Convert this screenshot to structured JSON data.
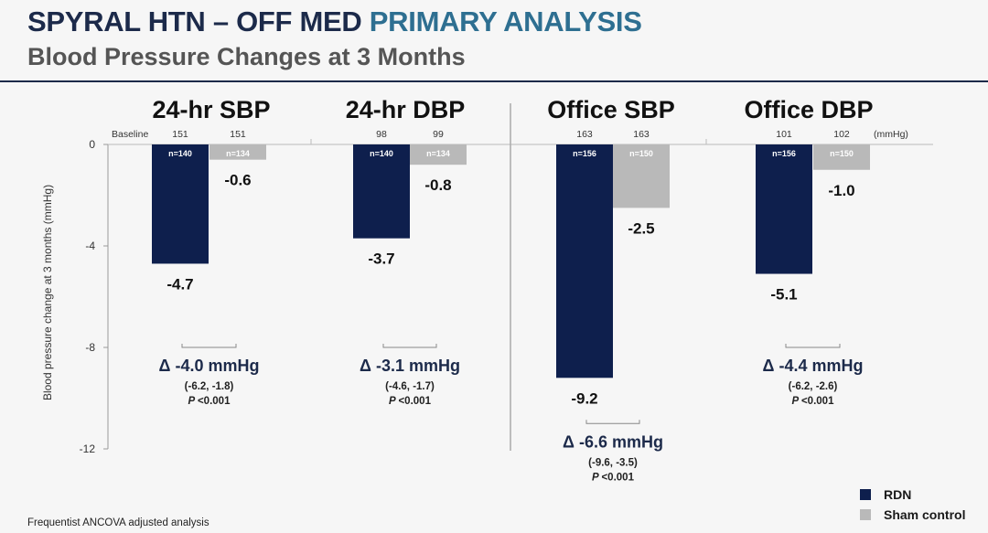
{
  "header": {
    "title_main": "SPYRAL HTN – OFF MED",
    "title_accent": "PRIMARY ANALYSIS",
    "subtitle": "Blood Pressure Changes at 3 Months"
  },
  "colors": {
    "rdn": "#0e1f4d",
    "sham": "#b9b9b9",
    "title": "#1c2a4a",
    "accent": "#2e6f91"
  },
  "chart_data": {
    "type": "bar",
    "ylabel": "Blood pressure change at 3 months (mmHg)",
    "ylim": [
      -12,
      0
    ],
    "yticks": [
      "0",
      "-4",
      "-8",
      "-12"
    ],
    "baseline_label": "Baseline",
    "unit_label": "(mmHg)",
    "grid": false,
    "categories": [
      "24-hr SBP",
      "24-hr DBP",
      "Office SBP",
      "Office DBP"
    ],
    "series": [
      {
        "name": "RDN",
        "values": [
          -4.7,
          -3.7,
          -9.2,
          -5.1
        ],
        "labels": [
          "-4.7",
          "-3.7",
          "-9.2",
          "-5.1"
        ],
        "baseline": [
          "151",
          "98",
          "163",
          "101"
        ],
        "n": [
          "n=140",
          "n=140",
          "n=156",
          "n=156"
        ]
      },
      {
        "name": "Sham control",
        "values": [
          -0.6,
          -0.8,
          -2.5,
          -1.0
        ],
        "labels": [
          "-0.6",
          "-0.8",
          "-2.5",
          "-1.0"
        ],
        "baseline": [
          "151",
          "99",
          "163",
          "102"
        ],
        "n": [
          "n=134",
          "n=134",
          "n=150",
          "n=150"
        ]
      }
    ],
    "differences": [
      {
        "delta": "Δ -4.0 mmHg",
        "ci": "(-6.2, -1.8)",
        "p": "<0.001"
      },
      {
        "delta": "Δ -3.1 mmHg",
        "ci": "(-4.6, -1.7)",
        "p": "<0.001"
      },
      {
        "delta": "Δ -6.6 mmHg",
        "ci": "(-9.6, -3.5)",
        "p": "<0.001"
      },
      {
        "delta": "Δ -4.4 mmHg",
        "ci": "(-6.2, -2.6)",
        "p": "<0.001"
      }
    ],
    "p_label": "P",
    "legend_position": "bottom-right"
  },
  "footnote": "Frequentist ANCOVA adjusted analysis"
}
